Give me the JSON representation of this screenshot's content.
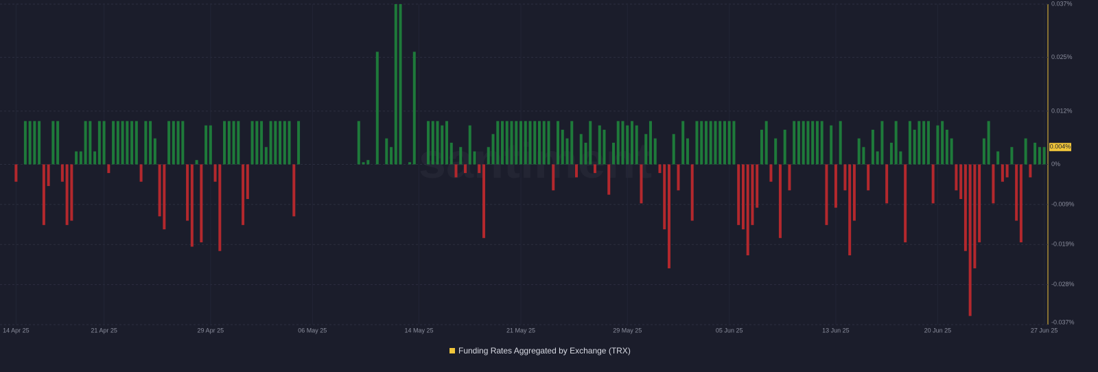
{
  "chart_data": {
    "type": "bar",
    "watermark": "santiment",
    "categories": [
      "14 Apr 25",
      null,
      null,
      null,
      null,
      null,
      null,
      null,
      null,
      null,
      null,
      null,
      null,
      null,
      null,
      null,
      null,
      null,
      null,
      "21 Apr 25",
      null,
      null,
      null,
      null,
      null,
      null,
      null,
      null,
      null,
      null,
      null,
      null,
      null,
      null,
      null,
      null,
      null,
      null,
      null,
      null,
      null,
      null,
      "29 Apr 25",
      null,
      null,
      null,
      null,
      null,
      null,
      null,
      null,
      null,
      null,
      null,
      null,
      null,
      null,
      null,
      null,
      null,
      null,
      null,
      null,
      null,
      "06 May 25",
      null,
      null,
      null,
      null,
      null,
      null,
      null,
      null,
      null,
      null,
      null,
      null,
      null,
      null,
      null,
      null,
      null,
      null,
      null,
      null,
      null,
      null,
      "14 May 25",
      null,
      null,
      null,
      null,
      null,
      null,
      null,
      null,
      null,
      null,
      null,
      null,
      null,
      null,
      null,
      null,
      null,
      null,
      null,
      null,
      null,
      "21 May 25",
      null,
      null,
      null,
      null,
      null,
      null,
      null,
      null,
      null,
      null,
      null,
      null,
      null,
      null,
      null,
      null,
      null,
      null,
      null,
      null,
      null,
      null,
      "29 May 25",
      null,
      null,
      null,
      null,
      null,
      null,
      null,
      null,
      null,
      null,
      null,
      null,
      null,
      null,
      null,
      null,
      null,
      null,
      null,
      null,
      null,
      "05 Jun 25",
      null,
      null,
      null,
      null,
      null,
      null,
      null,
      null,
      null,
      null,
      null,
      null,
      null,
      null,
      null,
      null,
      null,
      null,
      null,
      null,
      null,
      null,
      "13 Jun 25",
      null,
      null,
      null,
      null,
      null,
      null,
      null,
      null,
      null,
      null,
      null,
      null,
      null,
      null,
      null,
      null,
      null,
      null,
      null,
      null,
      null,
      "20 Jun 25",
      null,
      null,
      null,
      null,
      null,
      null,
      null,
      null,
      null,
      null,
      null,
      null,
      null,
      null,
      null,
      null,
      null,
      null,
      null,
      null,
      null,
      null,
      "27 Jun 25"
    ],
    "series": [
      {
        "name": "Funding Rates Aggregated by Exchange (TRX)",
        "color": "#f0c53a",
        "color_positive": "#1e7a3a",
        "color_negative": "#b3282d",
        "last_label": "0.004%",
        "values": [
          -0.004,
          0,
          0.01,
          0.01,
          0.01,
          0.01,
          -0.014,
          -0.005,
          0.01,
          0.01,
          -0.004,
          -0.014,
          -0.013,
          0.003,
          0.003,
          0.01,
          0.01,
          0.003,
          0.01,
          0.01,
          -0.002,
          0.01,
          0.01,
          0.01,
          0.01,
          0.01,
          0.01,
          -0.004,
          0.01,
          0.01,
          0.006,
          -0.012,
          -0.015,
          0.01,
          0.01,
          0.01,
          0.01,
          -0.013,
          -0.019,
          0.001,
          -0.018,
          0.009,
          0.009,
          -0.004,
          -0.02,
          0.01,
          0.01,
          0.01,
          0.01,
          -0.014,
          -0.008,
          0.01,
          0.01,
          0.01,
          0.004,
          0.01,
          0.01,
          0.01,
          0.01,
          0.01,
          -0.012,
          0.01,
          0,
          0,
          0,
          0,
          0,
          0,
          0,
          0,
          0,
          0,
          0,
          0,
          0.01,
          0.0005,
          0.001,
          0,
          0.026,
          0,
          0.006,
          0.004,
          0.037,
          0.037,
          0,
          0.0005,
          0.026,
          0,
          0,
          0.01,
          0.01,
          0.01,
          0.009,
          0.01,
          0.005,
          -0.003,
          0.004,
          -0.002,
          0.009,
          0.003,
          -0.002,
          -0.017,
          0.004,
          0.007,
          0.01,
          0.01,
          0.01,
          0.01,
          0.01,
          0.01,
          0.01,
          0.01,
          0.01,
          0.01,
          0.01,
          0.01,
          -0.006,
          0.01,
          0.008,
          0.006,
          0.01,
          -0.003,
          0.007,
          0.005,
          0.01,
          -0.002,
          0.009,
          0.008,
          -0.007,
          0.005,
          0.01,
          0.01,
          0.009,
          0.01,
          0.009,
          -0.009,
          0.007,
          0.01,
          0.006,
          -0.002,
          -0.015,
          -0.024,
          0.007,
          -0.006,
          0.01,
          0.006,
          -0.013,
          0.01,
          0.01,
          0.01,
          0.01,
          0.01,
          0.01,
          0.01,
          0.01,
          0.01,
          -0.014,
          -0.015,
          -0.021,
          -0.014,
          -0.01,
          0.008,
          0.01,
          -0.004,
          0.006,
          -0.017,
          0.008,
          -0.006,
          0.01,
          0.01,
          0.01,
          0.01,
          0.01,
          0.01,
          0.01,
          -0.014,
          0.009,
          -0.01,
          0.01,
          -0.006,
          -0.021,
          -0.013,
          0.006,
          0.004,
          -0.006,
          0.008,
          0.003,
          0.01,
          -0.009,
          0.005,
          0.01,
          0.003,
          -0.018,
          0.01,
          0.008,
          0.01,
          0.01,
          0.01,
          -0.009,
          0.009,
          0.01,
          0.008,
          0.006,
          -0.006,
          -0.008,
          -0.02,
          -0.035,
          -0.024,
          -0.018,
          0.006,
          0.01,
          -0.009,
          0.003,
          -0.004,
          -0.003,
          0.004,
          -0.013,
          -0.018,
          0.006,
          -0.003,
          0.005,
          0.004,
          0.004
        ]
      }
    ],
    "ylim": [
      -0.037,
      0.037
    ],
    "yticks": [
      {
        "value": 0.037,
        "label": "0.037%"
      },
      {
        "value": 0.0247,
        "label": "0.025%"
      },
      {
        "value": 0.0123,
        "label": "0.012%"
      },
      {
        "value": 0,
        "label": "0%"
      },
      {
        "value": -0.00925,
        "label": "-0.009%"
      },
      {
        "value": -0.0185,
        "label": "-0.019%"
      },
      {
        "value": -0.02775,
        "label": "-0.028%"
      },
      {
        "value": -0.037,
        "label": "-0.037%"
      }
    ],
    "grid": true
  }
}
